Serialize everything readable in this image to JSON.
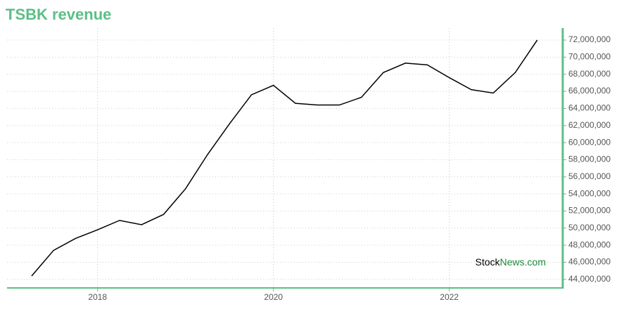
{
  "chart_data": {
    "type": "line",
    "title": "TSBK revenue",
    "watermark": [
      "Stock",
      "News.com"
    ],
    "x": [
      2017.25,
      2017.5,
      2017.75,
      2018,
      2018.25,
      2018.5,
      2018.75,
      2019,
      2019.25,
      2019.5,
      2019.75,
      2020,
      2020.25,
      2020.5,
      2020.75,
      2021,
      2021.25,
      2021.5,
      2021.75,
      2022,
      2022.25,
      2022.5,
      2022.75,
      2023
    ],
    "series": [
      {
        "name": "Revenue",
        "color": "#000000",
        "values": [
          44400000,
          47400000,
          48800000,
          49800000,
          50900000,
          50400000,
          51600000,
          54600000,
          58600000,
          62200000,
          65600000,
          66700000,
          64600000,
          64400000,
          64400000,
          65300000,
          68200000,
          69300000,
          69100000,
          67600000,
          66200000,
          65800000,
          68200000,
          72000000
        ]
      }
    ],
    "xlim": [
      2016.97,
      2023.29
    ],
    "xticks": [
      2018,
      2020,
      2022
    ],
    "ylim": [
      43000000,
      73400000
    ],
    "yticks": [
      {
        "value": 44000000,
        "label": "44,000,000"
      },
      {
        "value": 46000000,
        "label": "46,000,000"
      },
      {
        "value": 48000000,
        "label": "48,000,000"
      },
      {
        "value": 50000000,
        "label": "50,000,000"
      },
      {
        "value": 52000000,
        "label": "52,000,000"
      },
      {
        "value": 54000000,
        "label": "54,000,000"
      },
      {
        "value": 56000000,
        "label": "56,000,000"
      },
      {
        "value": 58000000,
        "label": "58,000,000"
      },
      {
        "value": 60000000,
        "label": "60,000,000"
      },
      {
        "value": 62000000,
        "label": "62,000,000"
      },
      {
        "value": 64000000,
        "label": "64,000,000"
      },
      {
        "value": 66000000,
        "label": "66,000,000"
      },
      {
        "value": 68000000,
        "label": "68,000,000"
      },
      {
        "value": 70000000,
        "label": "70,000,000"
      },
      {
        "value": 72000000,
        "label": "72,000,000"
      }
    ],
    "grid": true
  }
}
